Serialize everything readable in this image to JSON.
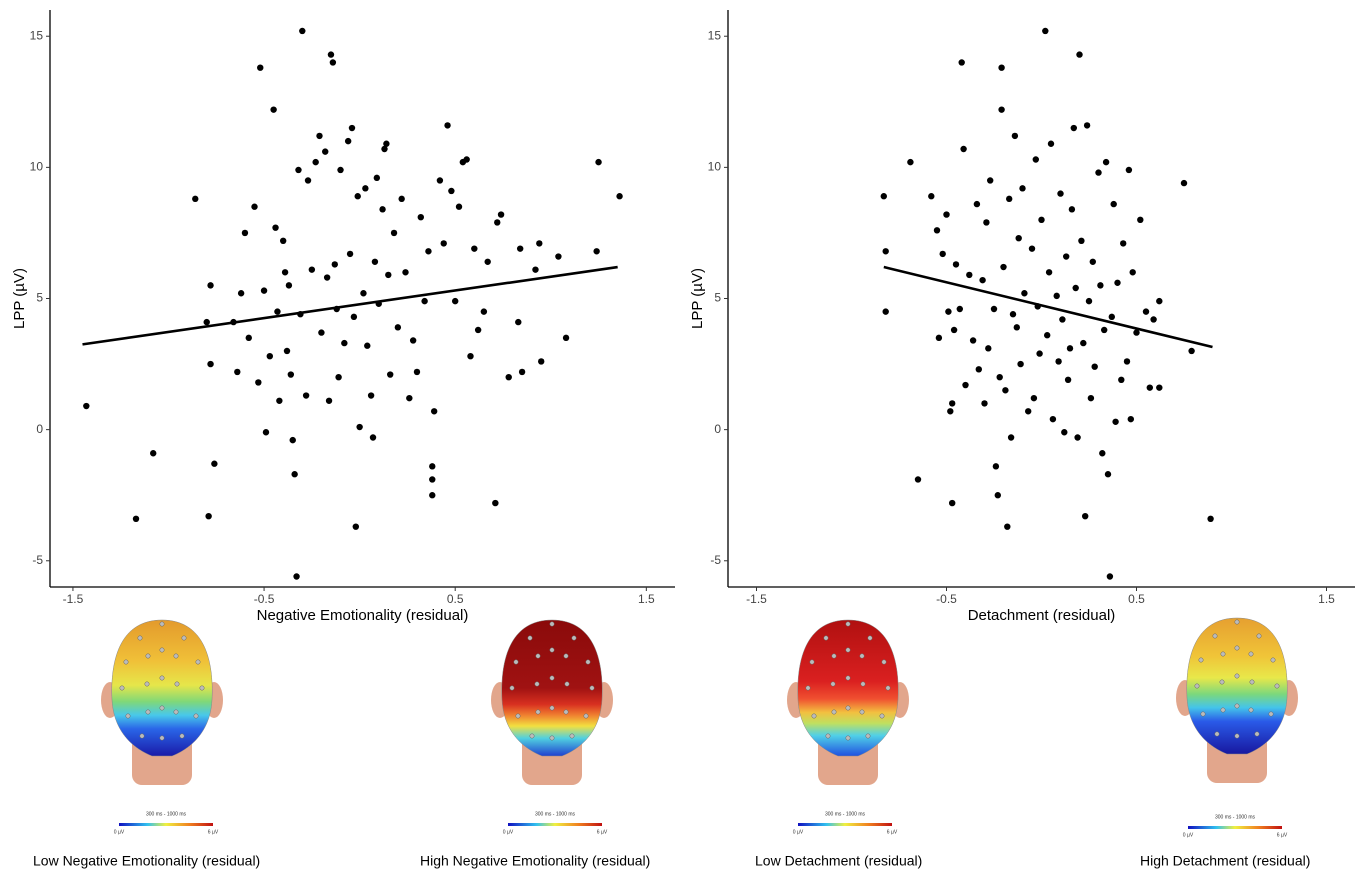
{
  "chart_data": [
    {
      "type": "scatter",
      "x_label": "Negative Emotionality (residual)",
      "y_label": "LPP (µV)",
      "color": "#000000",
      "xlim": [
        -1.62,
        1.65
      ],
      "ylim": [
        -6,
        16
      ],
      "xticks": [
        -1.5,
        -0.5,
        0.5,
        1.5
      ],
      "yticks": [
        -5,
        0,
        5,
        10,
        15
      ],
      "x": [
        -1.43,
        -1.17,
        -1.08,
        -0.86,
        -0.8,
        -0.79,
        -0.78,
        -0.78,
        -0.76,
        -0.66,
        -0.64,
        -0.62,
        -0.6,
        -0.58,
        -0.55,
        -0.53,
        -0.52,
        -0.5,
        -0.49,
        -0.47,
        -0.45,
        -0.44,
        -0.43,
        -0.42,
        -0.4,
        -0.39,
        -0.38,
        -0.37,
        -0.36,
        -0.35,
        -0.34,
        -0.33,
        -0.32,
        -0.31,
        -0.3,
        -0.28,
        -0.27,
        -0.25,
        -0.23,
        -0.21,
        -0.2,
        -0.18,
        -0.17,
        -0.16,
        -0.15,
        -0.14,
        -0.13,
        -0.12,
        -0.11,
        -0.1,
        -0.08,
        -0.06,
        -0.05,
        -0.04,
        -0.03,
        -0.02,
        -0.01,
        0.0,
        0.02,
        0.03,
        0.04,
        0.06,
        0.07,
        0.08,
        0.09,
        0.1,
        0.12,
        0.13,
        0.14,
        0.15,
        0.16,
        0.18,
        0.2,
        0.22,
        0.24,
        0.26,
        0.28,
        0.3,
        0.32,
        0.34,
        0.36,
        0.38,
        0.38,
        0.38,
        0.39,
        0.42,
        0.44,
        0.46,
        0.48,
        0.5,
        0.52,
        0.54,
        0.56,
        0.58,
        0.6,
        0.62,
        0.65,
        0.67,
        0.71,
        0.72,
        0.74,
        0.78,
        0.83,
        0.84,
        0.85,
        0.92,
        0.94,
        0.95,
        1.08,
        1.04,
        1.24,
        1.25,
        1.36
      ],
      "values": [
        0.9,
        -3.4,
        -0.9,
        8.8,
        4.1,
        -3.3,
        5.5,
        2.5,
        -1.3,
        4.1,
        2.2,
        5.2,
        7.5,
        3.5,
        8.5,
        1.8,
        13.8,
        5.3,
        -0.1,
        2.8,
        12.2,
        7.7,
        4.5,
        1.1,
        7.2,
        6.0,
        3.0,
        5.5,
        2.1,
        -0.4,
        -1.7,
        -5.6,
        9.9,
        4.4,
        15.2,
        1.3,
        9.5,
        6.1,
        10.2,
        11.2,
        3.7,
        10.6,
        5.8,
        1.1,
        14.3,
        14.0,
        6.3,
        4.6,
        2.0,
        9.9,
        3.3,
        11.0,
        6.7,
        11.5,
        4.3,
        -3.7,
        8.9,
        0.1,
        5.2,
        9.2,
        3.2,
        1.3,
        -0.3,
        6.4,
        9.6,
        4.8,
        8.4,
        10.7,
        10.9,
        5.9,
        2.1,
        7.5,
        3.9,
        8.8,
        6.0,
        1.2,
        3.4,
        2.2,
        8.1,
        4.9,
        6.8,
        -1.4,
        -1.9,
        -2.5,
        0.7,
        9.5,
        7.1,
        11.6,
        9.1,
        4.9,
        8.5,
        10.2,
        10.3,
        2.8,
        6.9,
        3.8,
        4.5,
        6.4,
        -2.8,
        7.9,
        8.2,
        2.0,
        4.1,
        6.9,
        2.2,
        6.1,
        7.1,
        2.6,
        3.5,
        6.6,
        6.8,
        10.2,
        8.9
      ],
      "trend": {
        "x": [
          -1.45,
          1.35
        ],
        "values": [
          3.25,
          6.2
        ]
      }
    },
    {
      "type": "scatter",
      "x_label": "Detachment (residual)",
      "y_label": "LPP (µV)",
      "color": "#000000",
      "xlim": [
        -1.65,
        1.65
      ],
      "ylim": [
        -6,
        16
      ],
      "xticks": [
        -1.5,
        -0.5,
        0.5,
        1.5
      ],
      "yticks": [
        -5,
        0,
        5,
        10,
        15
      ],
      "x": [
        -0.83,
        -0.82,
        -0.82,
        -0.69,
        -0.65,
        -0.58,
        -0.55,
        -0.54,
        -0.52,
        -0.5,
        -0.49,
        -0.48,
        -0.47,
        -0.47,
        -0.46,
        -0.45,
        -0.43,
        -0.42,
        -0.41,
        -0.4,
        -0.38,
        -0.36,
        -0.34,
        -0.33,
        -0.31,
        -0.3,
        -0.29,
        -0.28,
        -0.27,
        -0.25,
        -0.24,
        -0.23,
        -0.22,
        -0.21,
        -0.21,
        -0.2,
        -0.19,
        -0.18,
        -0.17,
        -0.16,
        -0.15,
        -0.14,
        -0.13,
        -0.12,
        -0.11,
        -0.1,
        -0.09,
        -0.07,
        -0.05,
        -0.04,
        -0.03,
        -0.02,
        -0.01,
        0.0,
        0.02,
        0.03,
        0.04,
        0.05,
        0.06,
        0.08,
        0.09,
        0.1,
        0.11,
        0.12,
        0.13,
        0.14,
        0.15,
        0.16,
        0.17,
        0.18,
        0.19,
        0.2,
        0.21,
        0.22,
        0.23,
        0.24,
        0.25,
        0.26,
        0.27,
        0.28,
        0.3,
        0.31,
        0.32,
        0.33,
        0.34,
        0.35,
        0.36,
        0.37,
        0.38,
        0.39,
        0.4,
        0.42,
        0.43,
        0.45,
        0.46,
        0.47,
        0.48,
        0.5,
        0.52,
        0.55,
        0.57,
        0.59,
        0.62,
        0.62,
        0.75,
        0.79,
        0.89
      ],
      "values": [
        8.9,
        6.8,
        4.5,
        10.2,
        -1.9,
        8.9,
        7.6,
        3.5,
        6.7,
        8.2,
        4.5,
        0.7,
        1.0,
        -2.8,
        3.8,
        6.3,
        4.6,
        14.0,
        10.7,
        1.7,
        5.9,
        3.4,
        8.6,
        2.3,
        5.7,
        1.0,
        7.9,
        3.1,
        9.5,
        4.6,
        -1.4,
        -2.5,
        2.0,
        13.8,
        12.2,
        6.2,
        1.5,
        -3.7,
        8.8,
        -0.3,
        4.4,
        11.2,
        3.9,
        7.3,
        2.5,
        9.2,
        5.2,
        0.7,
        6.9,
        1.2,
        10.3,
        4.7,
        2.9,
        8.0,
        15.2,
        3.6,
        6.0,
        10.9,
        0.4,
        5.1,
        2.6,
        9.0,
        4.2,
        -0.1,
        6.6,
        1.9,
        3.1,
        8.4,
        11.5,
        5.4,
        -0.3,
        14.3,
        7.2,
        3.3,
        -3.3,
        11.6,
        4.9,
        1.2,
        6.4,
        2.4,
        9.8,
        5.5,
        -0.9,
        3.8,
        10.2,
        -1.7,
        -5.6,
        4.3,
        8.6,
        0.3,
        5.6,
        1.9,
        7.1,
        2.6,
        9.9,
        0.4,
        6.0,
        3.7,
        8.0,
        4.5,
        1.6,
        4.2,
        4.9,
        1.6,
        9.4,
        3.0,
        -3.4
      ],
      "trend": {
        "x": [
          -0.83,
          0.9
        ],
        "values": [
          6.2,
          3.15
        ]
      }
    }
  ],
  "topomaps": [
    {
      "caption": "Low Negative Emotionality (residual)",
      "window": "300 ms - 1000 ms",
      "min_label": "0 µV",
      "max_label": "6 µV"
    },
    {
      "caption": "High Negative Emotionality (residual)",
      "window": "300 ms - 1000 ms",
      "min_label": "0 µV",
      "max_label": "6 µV"
    },
    {
      "caption": "Low Detachment (residual)",
      "window": "300 ms - 1000 ms",
      "min_label": "0 µV",
      "max_label": "6 µV"
    },
    {
      "caption": "High Detachment (residual)",
      "window": "300 ms - 1000 ms",
      "min_label": "0 µV",
      "max_label": "6 µV"
    }
  ]
}
